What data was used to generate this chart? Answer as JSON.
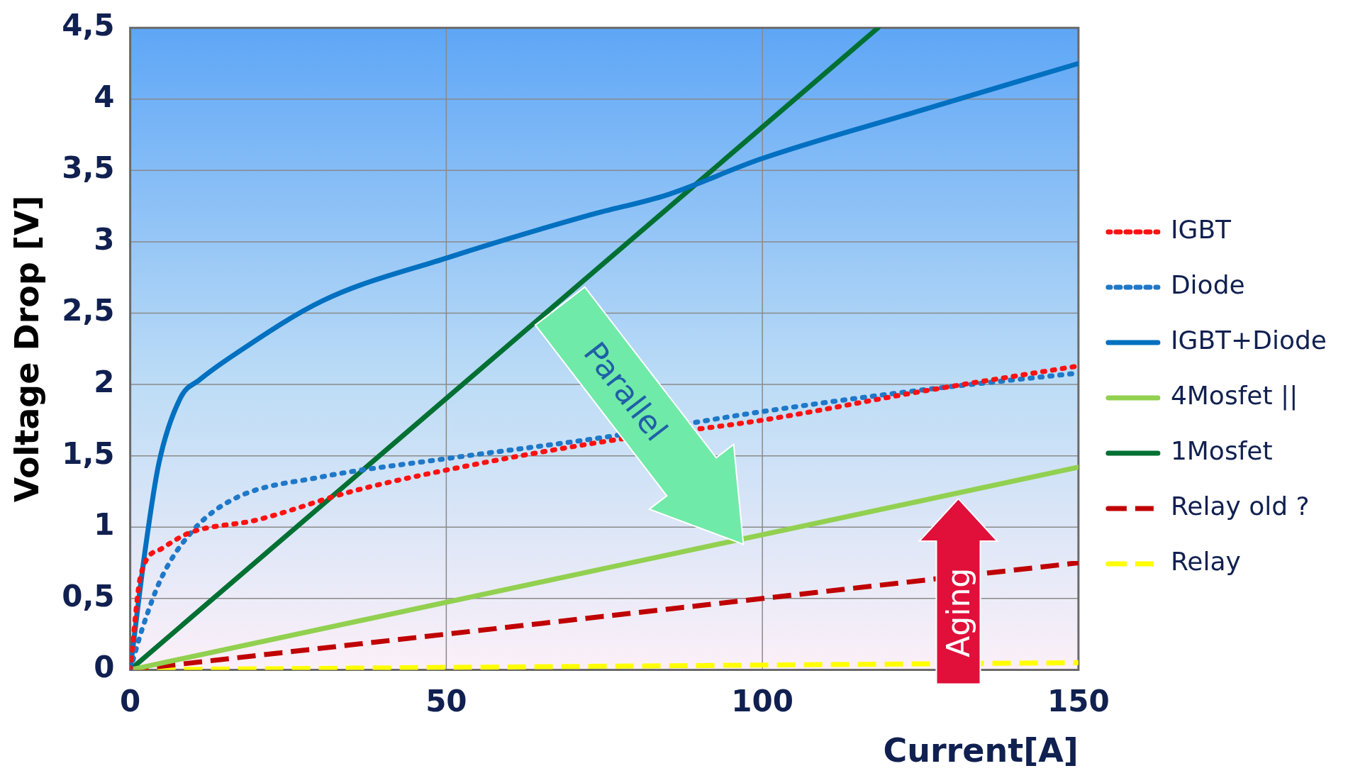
{
  "chart_data": {
    "type": "line",
    "ylabel": "Voltage Drop [V]",
    "xlabel": "Current[A]",
    "xlim": [
      0,
      150
    ],
    "xticks": [
      0,
      50,
      100,
      150
    ],
    "ylim": [
      0,
      4.5
    ],
    "yticks": [
      0,
      {
        "value": 0.5,
        "label": "0,5"
      },
      1,
      {
        "value": 1.5,
        "label": "1,5"
      },
      2,
      {
        "value": 2.5,
        "label": "2,5"
      },
      3,
      {
        "value": 3.5,
        "label": "3,5"
      },
      4,
      {
        "value": 4.5,
        "label": "4,5"
      }
    ],
    "grid": true,
    "legend": "right",
    "marker": "none",
    "annotations": [
      "Parallel",
      "Aging"
    ],
    "series": [
      {
        "name": "IGBT",
        "color": "#ff1010",
        "line_style": "dotted",
        "x": [
          0,
          1.7,
          5,
          9.4,
          20,
          35,
          50,
          75,
          100,
          125,
          150
        ],
        "values": [
          0,
          0.67,
          0.85,
          0.96,
          1.05,
          1.25,
          1.4,
          1.6,
          1.75,
          1.95,
          2.13
        ]
      },
      {
        "name": "Diode",
        "color": "#1f78c8",
        "line_style": "dotted",
        "x": [
          0,
          2,
          5,
          10,
          16.5,
          30,
          50,
          75,
          100,
          125,
          150
        ],
        "values": [
          0,
          0.3,
          0.65,
          0.98,
          1.2,
          1.35,
          1.48,
          1.63,
          1.81,
          1.96,
          2.08
        ]
      },
      {
        "name": "IGBT+Diode",
        "color": "#0070c0",
        "line_style": "solid",
        "x": [
          0,
          2.4,
          4.5,
          8,
          10.9,
          16.5,
          30.6,
          50.3,
          72.9,
          85,
          99.7,
          125,
          150
        ],
        "values": [
          0,
          0.85,
          1.44,
          1.91,
          2.03,
          2.21,
          2.59,
          2.89,
          3.19,
          3.33,
          3.58,
          3.92,
          4.25
        ]
      },
      {
        "name": "4Mosfet ||",
        "color": "#92d050",
        "line_style": "solid",
        "x": [
          0,
          150
        ],
        "values": [
          0,
          1.42
        ]
      },
      {
        "name": "1Mosfet",
        "color": "#007033",
        "line_style": "solid",
        "x": [
          0,
          118.3
        ],
        "values": [
          0,
          4.5
        ]
      },
      {
        "name": "Relay old ?",
        "color": "#c00000",
        "line_style": "dashed",
        "x": [
          0,
          150
        ],
        "values": [
          0,
          0.75
        ]
      },
      {
        "name": "Relay",
        "color": "#ffff00",
        "line_style": "dashed",
        "x": [
          0,
          150
        ],
        "values": [
          0,
          0.05
        ]
      }
    ]
  }
}
